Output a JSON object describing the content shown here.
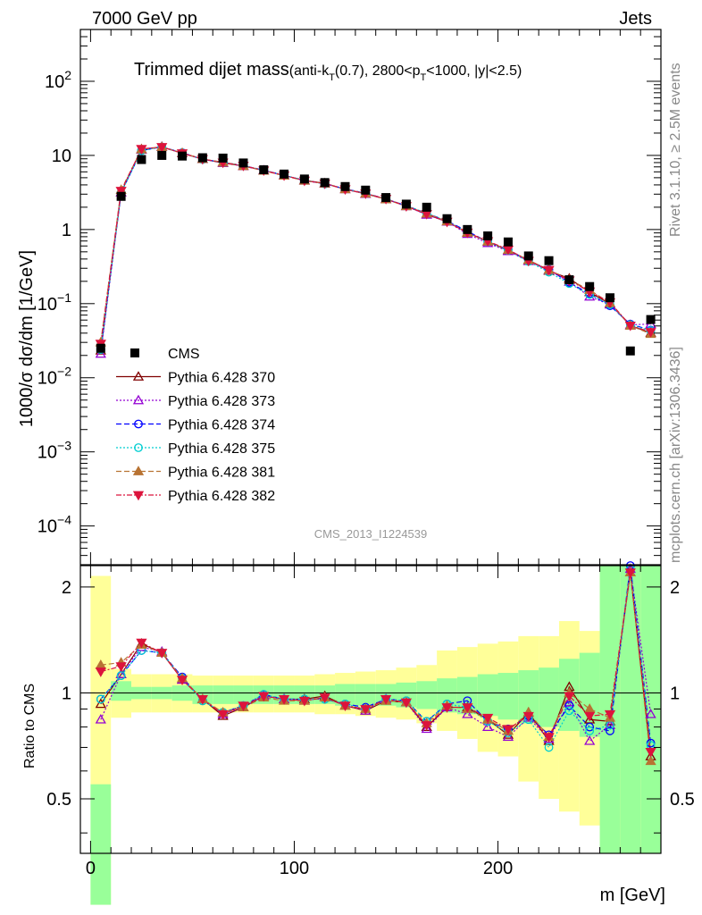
{
  "header": {
    "left": "7000 GeV pp",
    "right": "Jets"
  },
  "side": {
    "rivet": "Rivet 3.1.10, ≥ 2.5M events",
    "mcplots": "mcplots.cern.ch [arXiv:1306.3436]"
  },
  "chart_data": {
    "type": "scatter",
    "title": {
      "main": "Trimmed dijet mass",
      "sub_a": "(anti-k",
      "sub_t1": "T",
      "sub_b": "(0.7), 2800<p",
      "sub_t2": "T",
      "sub_c": "<1000, |y|<2.5)"
    },
    "analysis_label": "CMS_2013_I1224539",
    "xlabel": "m [GeV]",
    "ylabel_top": "1000/σ dσ/dm [1/GeV]",
    "ylabel_ratio": "Ratio to CMS",
    "xlim": [
      -5,
      280
    ],
    "ylim_top": [
      3e-05,
      500
    ],
    "ylim_ratio": [
      0.35,
      2.3
    ],
    "y_scale_top": "log",
    "y_scale_ratio": "log",
    "x_tick_labels": [
      "0",
      "100",
      "200"
    ],
    "y_tick_labels_top": [
      {
        "base": "10",
        "exp": "2"
      },
      {
        "base": "10",
        "exp": ""
      },
      {
        "base": "1",
        "exp": ""
      },
      {
        "base": "10",
        "exp": "−1"
      },
      {
        "base": "10",
        "exp": "−2"
      },
      {
        "base": "10",
        "exp": "−3"
      },
      {
        "base": "10",
        "exp": "−4"
      }
    ],
    "y_tick_labels_ratio": [
      "2",
      "1",
      "0.5"
    ],
    "legend_position": "middle-left",
    "bins_x": [
      5,
      15,
      25,
      35,
      45,
      55,
      65,
      75,
      85,
      95,
      105,
      115,
      125,
      135,
      145,
      155,
      165,
      175,
      185,
      195,
      205,
      215,
      225,
      235,
      245,
      255,
      265,
      275
    ],
    "data": {
      "name": "CMS",
      "values": [
        0.025,
        2.8,
        8.8,
        10.0,
        9.8,
        9.3,
        9.2,
        7.9,
        6.4,
        5.6,
        4.8,
        4.3,
        3.8,
        3.4,
        2.7,
        2.2,
        2.0,
        1.4,
        1.0,
        0.82,
        0.68,
        0.44,
        0.38,
        0.21,
        0.17,
        0.12,
        0.023,
        0.061
      ]
    },
    "band_inner": [
      [
        0.25,
        0.55
      ],
      [
        0.95,
        1.08
      ],
      [
        0.96,
        1.04
      ],
      [
        0.96,
        1.04
      ],
      [
        0.95,
        1.05
      ],
      [
        0.93,
        1.05
      ],
      [
        0.93,
        1.05
      ],
      [
        0.93,
        1.05
      ],
      [
        0.93,
        1.05
      ],
      [
        0.93,
        1.05
      ],
      [
        0.93,
        1.05
      ],
      [
        0.93,
        1.05
      ],
      [
        0.92,
        1.06
      ],
      [
        0.92,
        1.06
      ],
      [
        0.92,
        1.06
      ],
      [
        0.91,
        1.07
      ],
      [
        0.9,
        1.08
      ],
      [
        0.88,
        1.1
      ],
      [
        0.87,
        1.11
      ],
      [
        0.86,
        1.13
      ],
      [
        0.84,
        1.14
      ],
      [
        0.82,
        1.16
      ],
      [
        0.8,
        1.18
      ],
      [
        0.78,
        1.25
      ],
      [
        0.75,
        1.3
      ],
      [
        0.35,
        2.3
      ],
      [
        0.35,
        2.3
      ],
      [
        0.35,
        2.3
      ]
    ],
    "band_outer": [
      [
        0.25,
        2.15
      ],
      [
        0.85,
        1.17
      ],
      [
        0.88,
        1.13
      ],
      [
        0.88,
        1.13
      ],
      [
        0.88,
        1.13
      ],
      [
        0.88,
        1.12
      ],
      [
        0.88,
        1.12
      ],
      [
        0.88,
        1.12
      ],
      [
        0.88,
        1.12
      ],
      [
        0.88,
        1.12
      ],
      [
        0.88,
        1.12
      ],
      [
        0.87,
        1.13
      ],
      [
        0.87,
        1.14
      ],
      [
        0.86,
        1.15
      ],
      [
        0.85,
        1.16
      ],
      [
        0.84,
        1.18
      ],
      [
        0.82,
        1.2
      ],
      [
        0.78,
        1.32
      ],
      [
        0.74,
        1.35
      ],
      [
        0.68,
        1.38
      ],
      [
        0.66,
        1.4
      ],
      [
        0.56,
        1.45
      ],
      [
        0.5,
        1.45
      ],
      [
        0.46,
        1.6
      ],
      [
        0.42,
        1.5
      ],
      [
        0.35,
        2.3
      ],
      [
        0.35,
        2.3
      ],
      [
        0.35,
        2.3
      ]
    ],
    "series": [
      {
        "name": "Pythia 6.428 370",
        "color": "#800000",
        "dash": "solid",
        "marker": "triangle-up-open",
        "ratio": [
          0.93,
          1.13,
          1.38,
          1.3,
          1.09,
          0.96,
          0.86,
          0.91,
          0.98,
          0.96,
          0.96,
          0.98,
          0.92,
          0.89,
          0.95,
          0.94,
          0.8,
          0.91,
          0.91,
          0.84,
          0.76,
          0.88,
          0.73,
          1.04,
          0.84,
          0.83,
          2.2,
          0.66
        ]
      },
      {
        "name": "Pythia 6.428 373",
        "color": "#9400d3",
        "dash": "2,2",
        "marker": "triangle-up-open",
        "ratio": [
          0.84,
          1.13,
          1.35,
          1.31,
          1.09,
          0.96,
          0.87,
          0.91,
          0.98,
          0.96,
          0.95,
          0.97,
          0.92,
          0.89,
          0.96,
          0.94,
          0.79,
          0.91,
          0.87,
          0.8,
          0.75,
          0.85,
          0.74,
          0.94,
          0.73,
          0.81,
          2.25,
          0.87
        ]
      },
      {
        "name": "Pythia 6.428 374",
        "color": "#0000ff",
        "dash": "6,3",
        "marker": "circle-open",
        "ratio": [
          0.96,
          1.12,
          1.32,
          1.3,
          1.11,
          0.95,
          0.88,
          0.92,
          0.99,
          0.96,
          0.96,
          0.96,
          0.93,
          0.91,
          0.96,
          0.95,
          0.83,
          0.93,
          0.95,
          0.83,
          0.79,
          0.86,
          0.76,
          0.92,
          0.8,
          0.78,
          2.3,
          0.72
        ]
      },
      {
        "name": "Pythia 6.428 375",
        "color": "#00ced1",
        "dash": "2,2",
        "marker": "circle-open",
        "ratio": [
          0.96,
          1.12,
          1.32,
          1.3,
          1.1,
          0.95,
          0.88,
          0.92,
          0.99,
          0.96,
          0.96,
          0.96,
          0.93,
          0.9,
          0.96,
          0.95,
          0.83,
          0.93,
          0.91,
          0.83,
          0.77,
          0.84,
          0.7,
          0.89,
          0.78,
          0.81,
          2.25,
          0.71
        ]
      },
      {
        "name": "Pythia 6.428 381",
        "color": "#b87333",
        "dash": "6,3",
        "marker": "triangle-up-filled",
        "ratio": [
          1.2,
          1.22,
          1.37,
          1.3,
          1.1,
          0.96,
          0.88,
          0.91,
          0.97,
          0.95,
          0.95,
          0.97,
          0.92,
          0.9,
          0.95,
          0.94,
          0.82,
          0.92,
          0.9,
          0.84,
          0.78,
          0.88,
          0.75,
          1.0,
          0.9,
          0.85,
          2.2,
          0.64
        ]
      },
      {
        "name": "Pythia 6.428 382",
        "color": "#dc143c",
        "dash": "6,2,2,2",
        "marker": "triangle-down-filled",
        "ratio": [
          1.15,
          1.19,
          1.39,
          1.3,
          1.09,
          0.96,
          0.87,
          0.92,
          0.98,
          0.96,
          0.95,
          0.97,
          0.92,
          0.9,
          0.96,
          0.94,
          0.81,
          0.91,
          0.91,
          0.85,
          0.79,
          0.86,
          0.75,
          0.98,
          0.86,
          0.87,
          2.2,
          0.68
        ]
      }
    ],
    "colors": {
      "band_inner": "#99ff99",
      "band_outer": "#ffff99",
      "data_marker": "#000000"
    }
  }
}
